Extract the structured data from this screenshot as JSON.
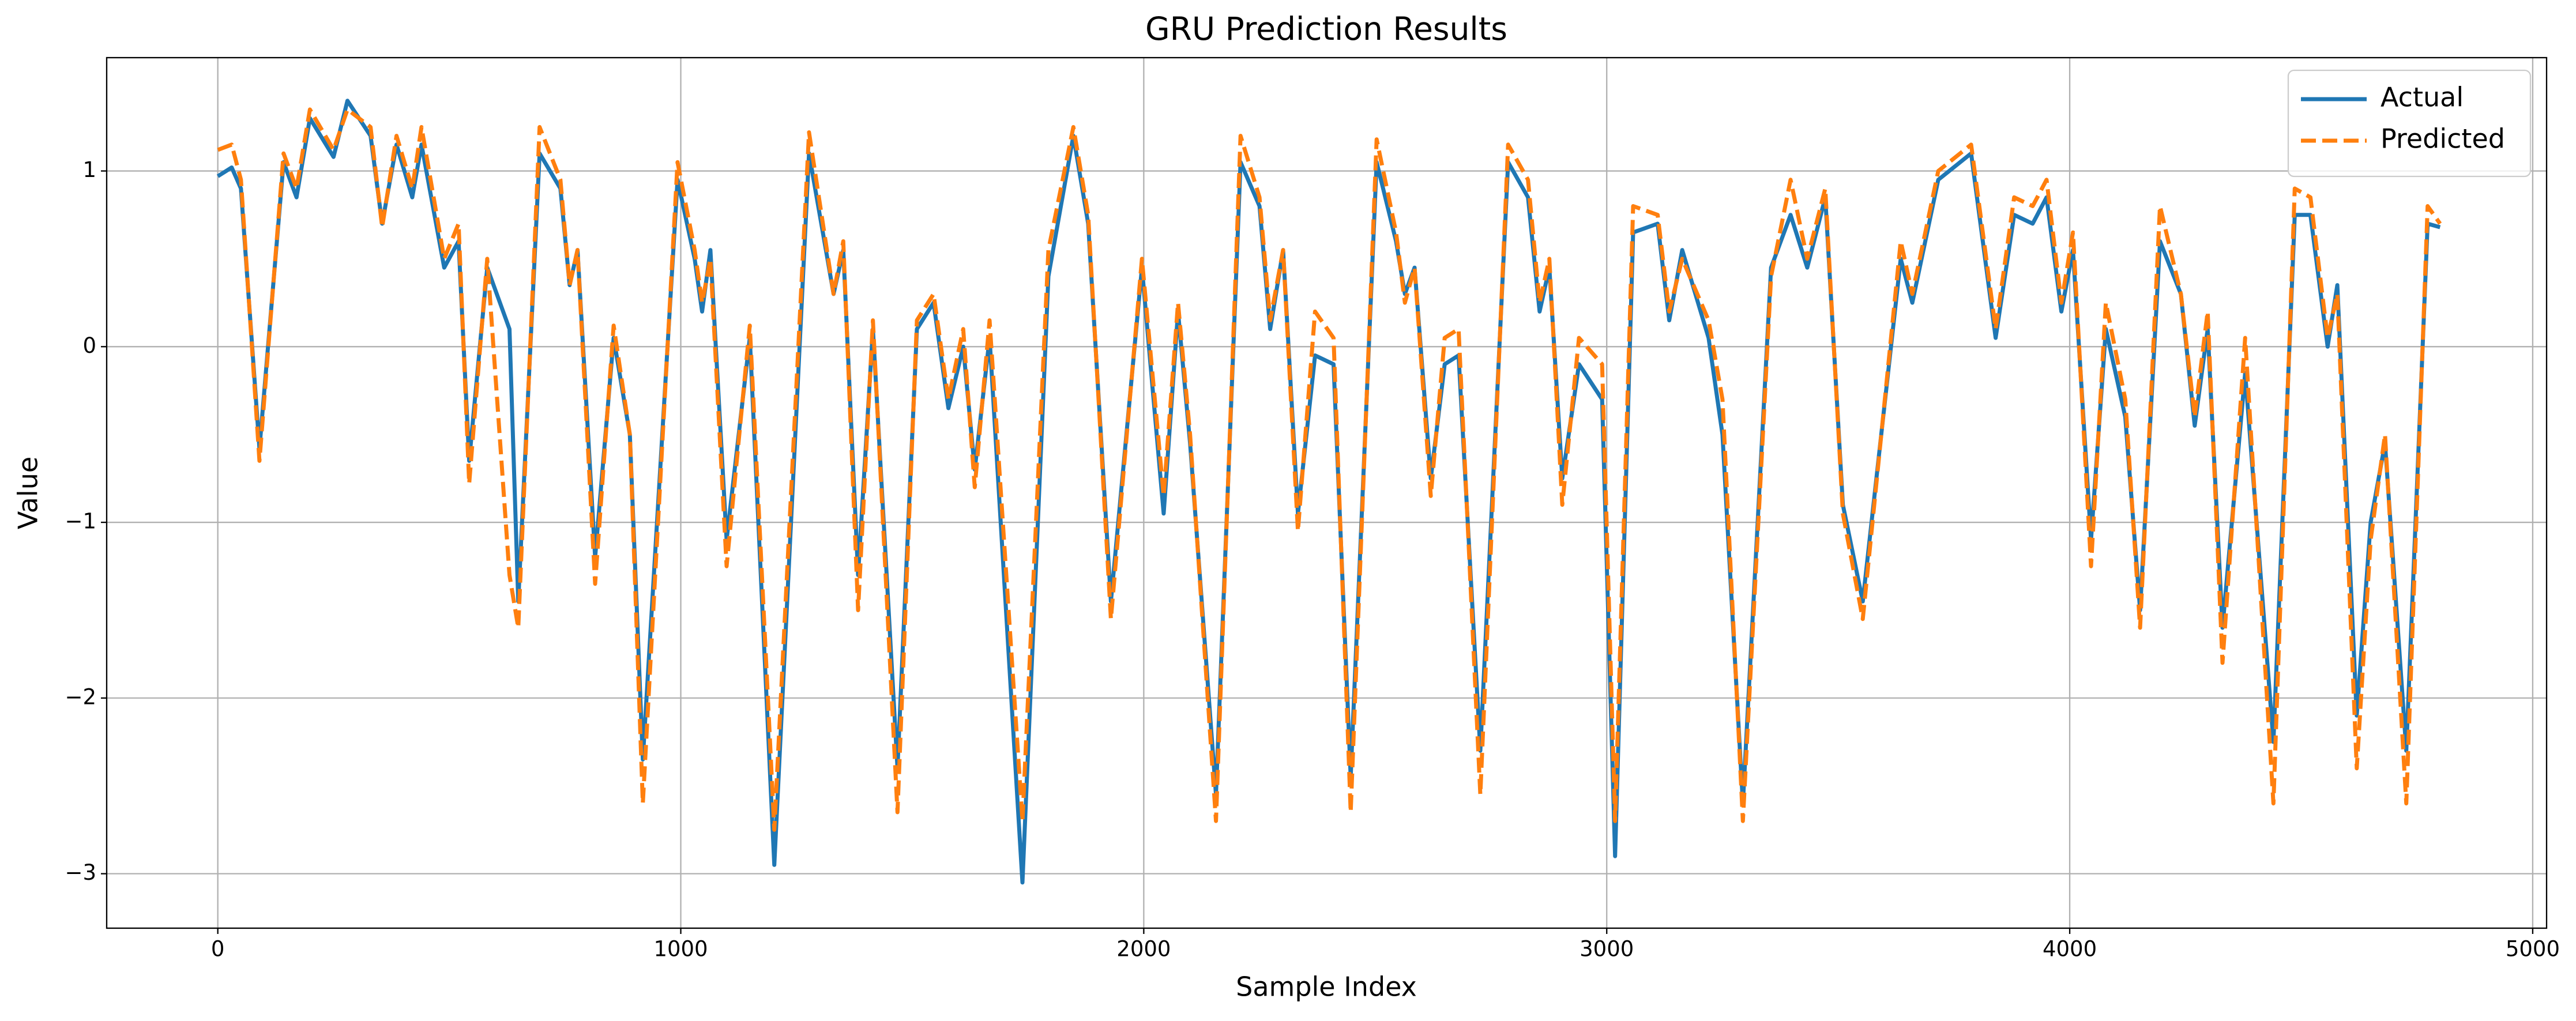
{
  "chart_data": {
    "type": "line",
    "title": "GRU Prediction Results",
    "xlabel": "Sample Index",
    "ylabel": "Value",
    "x": [
      0,
      30,
      50,
      90,
      142,
      170,
      199,
      250,
      280,
      330,
      355,
      386,
      420,
      440,
      489,
      520,
      543,
      582,
      630,
      649,
      695,
      740,
      760,
      777,
      815,
      855,
      890,
      918,
      993,
      1030,
      1046,
      1064,
      1099,
      1149,
      1202,
      1277,
      1330,
      1351,
      1383,
      1415,
      1468,
      1510,
      1546,
      1578,
      1610,
      1635,
      1667,
      1738,
      1794,
      1848,
      1880,
      1929,
      1996,
      2043,
      2074,
      2100,
      2156,
      2209,
      2250,
      2273,
      2301,
      2333,
      2370,
      2410,
      2447,
      2503,
      2545,
      2564,
      2585,
      2620,
      2650,
      2680,
      2727,
      2787,
      2830,
      2855,
      2876,
      2904,
      2940,
      2990,
      3018,
      3057,
      3110,
      3135,
      3163,
      3220,
      3250,
      3294,
      3355,
      3397,
      3433,
      3472,
      3510,
      3553,
      3635,
      3660,
      3716,
      3787,
      3840,
      3880,
      3920,
      3950,
      3982,
      4007,
      4046,
      4078,
      4120,
      4152,
      4195,
      4240,
      4270,
      4298,
      4330,
      4379,
      4440,
      4486,
      4520,
      4557,
      4578,
      4620,
      4650,
      4681,
      4727,
      4773,
      4800
    ],
    "series": [
      {
        "name": "Actual",
        "color": "#1f77b4",
        "linestyle": "solid",
        "values": [
          0.97,
          1.02,
          0.9,
          -0.58,
          1.05,
          0.85,
          1.3,
          1.08,
          1.4,
          1.2,
          0.7,
          1.15,
          0.85,
          1.15,
          0.45,
          0.6,
          -0.65,
          0.45,
          0.1,
          -1.45,
          1.1,
          0.9,
          0.35,
          0.55,
          -1.2,
          0.05,
          -0.5,
          -2.35,
          0.95,
          0.5,
          0.2,
          0.55,
          -1.1,
          0.05,
          -2.95,
          1.1,
          0.3,
          0.55,
          -1.3,
          0.1,
          -2.4,
          0.1,
          0.25,
          -0.35,
          0.0,
          -0.7,
          0.05,
          -3.05,
          0.4,
          1.2,
          0.7,
          -1.45,
          0.45,
          -0.95,
          0.2,
          -0.55,
          -2.55,
          1.05,
          0.8,
          0.1,
          0.55,
          -0.95,
          -0.05,
          -0.1,
          -2.45,
          1.05,
          0.6,
          0.3,
          0.45,
          -0.75,
          -0.1,
          -0.05,
          -2.3,
          1.05,
          0.85,
          0.2,
          0.45,
          -0.75,
          -0.1,
          -0.3,
          -2.9,
          0.65,
          0.7,
          0.15,
          0.55,
          0.05,
          -0.5,
          -2.6,
          0.45,
          0.75,
          0.45,
          0.85,
          -0.9,
          -1.45,
          0.5,
          0.25,
          0.95,
          1.1,
          0.05,
          0.75,
          0.7,
          0.85,
          0.2,
          0.55,
          -1.1,
          0.1,
          -0.4,
          -1.5,
          0.6,
          0.3,
          -0.45,
          0.1,
          -1.6,
          -0.15,
          -2.25,
          0.75,
          0.75,
          0.0,
          0.35,
          -2.1,
          -1.0,
          -0.55,
          -2.3,
          0.7,
          0.68
        ]
      },
      {
        "name": "Predicted",
        "color": "#ff7f0e",
        "linestyle": "dashed",
        "values": [
          1.12,
          1.15,
          0.95,
          -0.65,
          1.1,
          0.9,
          1.35,
          1.12,
          1.35,
          1.25,
          0.68,
          1.2,
          0.9,
          1.25,
          0.5,
          0.7,
          -0.78,
          0.5,
          -1.3,
          -1.6,
          1.25,
          0.95,
          0.35,
          0.55,
          -1.35,
          0.12,
          -0.5,
          -2.6,
          1.05,
          0.55,
          0.25,
          0.5,
          -1.25,
          0.12,
          -2.75,
          1.22,
          0.3,
          0.6,
          -1.5,
          0.15,
          -2.65,
          0.15,
          0.3,
          -0.3,
          0.1,
          -0.8,
          0.15,
          -2.7,
          0.55,
          1.25,
          0.75,
          -1.55,
          0.5,
          -0.85,
          0.25,
          -0.5,
          -2.7,
          1.2,
          0.85,
          0.15,
          0.55,
          -1.05,
          0.2,
          0.05,
          -2.65,
          1.18,
          0.65,
          0.25,
          0.45,
          -0.85,
          0.05,
          0.1,
          -2.55,
          1.15,
          0.95,
          0.25,
          0.5,
          -0.9,
          0.05,
          -0.1,
          -2.7,
          0.8,
          0.75,
          0.2,
          0.5,
          0.15,
          -0.3,
          -2.7,
          0.4,
          0.95,
          0.5,
          0.9,
          -0.95,
          -1.55,
          0.6,
          0.3,
          1.0,
          1.15,
          0.1,
          0.85,
          0.8,
          0.95,
          0.25,
          0.65,
          -1.25,
          0.25,
          -0.3,
          -1.6,
          0.8,
          0.3,
          -0.4,
          0.2,
          -1.8,
          0.05,
          -2.6,
          0.9,
          0.85,
          0.05,
          0.3,
          -2.4,
          -1.1,
          -0.5,
          -2.6,
          0.8,
          0.7
        ]
      }
    ],
    "xlim": [
      -240,
      5030
    ],
    "xticks": [
      0,
      1000,
      2000,
      3000,
      4000,
      5000
    ],
    "ylim": [
      -3.31,
      1.645
    ],
    "yticks": [
      {
        "value": -3,
        "label": "−3"
      },
      {
        "value": -2,
        "label": "−2"
      },
      {
        "value": -1,
        "label": "−1"
      },
      0,
      1
    ],
    "grid": true,
    "legend": "upper right"
  }
}
